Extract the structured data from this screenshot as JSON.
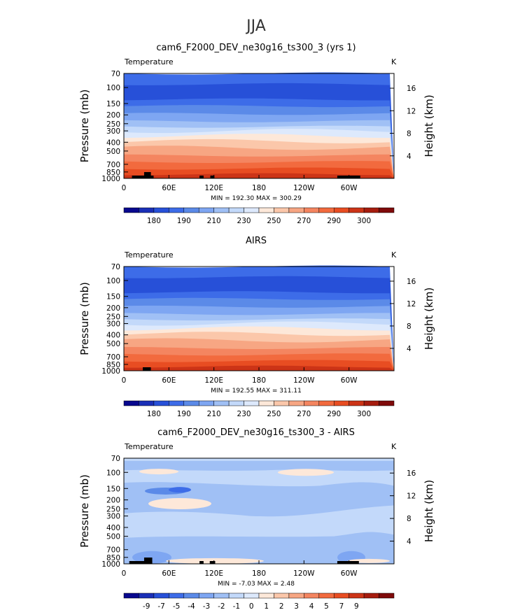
{
  "season": "JJA",
  "colors": [
    "#08088e",
    "#1a2fb7",
    "#2750d8",
    "#3d6ce8",
    "#5b8ae8",
    "#7ea6f2",
    "#a0c0f5",
    "#c3d9fa",
    "#dde9fc",
    "#fde8d9",
    "#fbc7aa",
    "#f7a683",
    "#f48560",
    "#f26a3e",
    "#e84d22",
    "#cc3417",
    "#a61c0e",
    "#7f0a0a"
  ],
  "cbar_labels_abs": [
    "180",
    "190",
    "210",
    "230",
    "250",
    "270",
    "290",
    "300"
  ],
  "cbar_labels_diff": [
    "-9",
    "-7",
    "-5",
    "-4",
    "-3",
    "-2",
    "-1",
    "0",
    "1",
    "2",
    "3",
    "4",
    "5",
    "7",
    "9"
  ],
  "panels": [
    {
      "title": "cam6_F2000_DEV_ne30g16_ts300_3 (yrs 1)",
      "var_label": "Temperature",
      "units": "K",
      "minmax": "MIN = 192.30   MAX = 300.29"
    },
    {
      "title": "AIRS",
      "var_label": "Temperature",
      "units": "K",
      "minmax": "MIN = 192.55   MAX = 311.11"
    },
    {
      "title": "cam6_F2000_DEV_ne30g16_ts300_3 - AIRS",
      "var_label": "Temperature",
      "units": "K",
      "minmax": "MIN =   -7.03   MAX =     2.48"
    }
  ],
  "axes": {
    "ylabel": "Pressure (mb)",
    "y2label": "Height (km)",
    "pressure_ticks": [
      "70",
      "100",
      "150",
      "200",
      "250",
      "300",
      "400",
      "500",
      "700",
      "850",
      "1000"
    ],
    "height_ticks": [
      "16",
      "12",
      "8",
      "4"
    ],
    "lon_ticks": [
      "0",
      "60E",
      "120E",
      "180",
      "120W",
      "60W"
    ]
  },
  "chart_data": [
    {
      "type": "heatmap",
      "title": "cam6_F2000_DEV_ne30g16_ts300_3 (yrs 1)",
      "xlabel": "",
      "ylabel": "Pressure (mb)",
      "y2label": "Height (km)",
      "x": [
        "0",
        "60E",
        "120E",
        "180",
        "120W",
        "60W"
      ],
      "y_pressure": [
        70,
        100,
        150,
        200,
        250,
        300,
        400,
        500,
        700,
        850,
        1000
      ],
      "levels": [
        180,
        190,
        210,
        230,
        250,
        270,
        290,
        300
      ],
      "z_temperature_approx": [
        200,
        205,
        212,
        220,
        228,
        237,
        250,
        260,
        275,
        285,
        295
      ],
      "min": 192.3,
      "max": 300.29,
      "units": "K"
    },
    {
      "type": "heatmap",
      "title": "AIRS",
      "xlabel": "",
      "ylabel": "Pressure (mb)",
      "y2label": "Height (km)",
      "x": [
        "0",
        "60E",
        "120E",
        "180",
        "120W",
        "60W"
      ],
      "y_pressure": [
        70,
        100,
        150,
        200,
        250,
        300,
        400,
        500,
        700,
        850,
        1000
      ],
      "levels": [
        180,
        190,
        210,
        230,
        250,
        270,
        290,
        300
      ],
      "z_temperature_approx": [
        200,
        206,
        213,
        221,
        229,
        238,
        250,
        261,
        276,
        286,
        296
      ],
      "min": 192.55,
      "max": 311.11,
      "units": "K"
    },
    {
      "type": "heatmap",
      "title": "cam6_F2000_DEV_ne30g16_ts300_3 - AIRS",
      "xlabel": "",
      "ylabel": "Pressure (mb)",
      "y2label": "Height (km)",
      "x": [
        "0",
        "60E",
        "120E",
        "180",
        "120W",
        "60W"
      ],
      "y_pressure": [
        70,
        100,
        150,
        200,
        250,
        300,
        400,
        500,
        700,
        850,
        1000
      ],
      "levels": [
        -9,
        -7,
        -5,
        -4,
        -3,
        -2,
        -1,
        0,
        1,
        2,
        3,
        4,
        5,
        7,
        9
      ],
      "min": -7.03,
      "max": 2.48,
      "units": "K"
    }
  ]
}
